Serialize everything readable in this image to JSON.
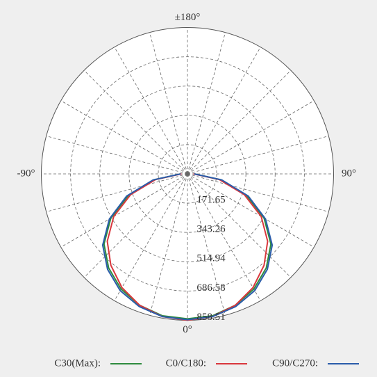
{
  "chart_data": {
    "type": "polar",
    "theta_labels": [
      {
        "value": 180,
        "label": "±180°"
      },
      {
        "value": -90,
        "label": "-90°"
      },
      {
        "value": 90,
        "label": "90°"
      },
      {
        "value": 0,
        "label": "0°"
      }
    ],
    "theta": [
      -90,
      -80,
      -70,
      -60,
      -50,
      -40,
      -30,
      -20,
      -10,
      0,
      10,
      20,
      30,
      40,
      50,
      60,
      70,
      80,
      90
    ],
    "series": [
      {
        "name": "C30(Max):",
        "color": "#2e8b3e",
        "values": [
          40,
          200,
          370,
          520,
          640,
          720,
          780,
          820,
          845,
          850,
          845,
          820,
          780,
          720,
          640,
          520,
          370,
          200,
          40
        ]
      },
      {
        "name": "C0/C180:",
        "color": "#d9373d",
        "values": [
          35,
          190,
          355,
          500,
          615,
          700,
          770,
          820,
          850,
          858,
          850,
          820,
          770,
          700,
          615,
          500,
          355,
          190,
          35
        ]
      },
      {
        "name": "C90/C270:",
        "color": "#2a5caa",
        "values": [
          40,
          205,
          380,
          530,
          650,
          730,
          790,
          828,
          850,
          855,
          850,
          828,
          790,
          730,
          650,
          530,
          380,
          205,
          40
        ]
      }
    ],
    "rlim": [
      0,
      858.51
    ],
    "rticks": [
      171.65,
      343.26,
      514.94,
      686.58,
      858.51
    ],
    "grid": true,
    "theta_grid_step": 15
  }
}
